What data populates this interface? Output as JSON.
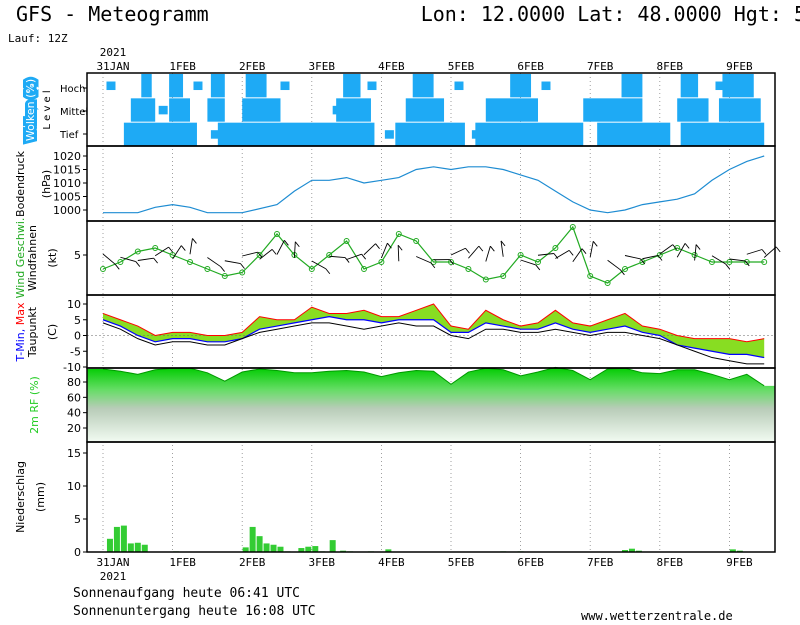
{
  "header": {
    "title_left": "GFS - Meteogramm",
    "title_right": "Lon: 12.0000 Lat: 48.0000 Hgt: 5",
    "run_label": "Lauf: 12Z"
  },
  "footer": {
    "sunrise": "Sonnenaufgang heute 06:41 UTC",
    "sunset": "Sonnenuntergang heute 16:08 UTC",
    "website": "www.wetterzentrale.de"
  },
  "time_axis": {
    "year": "2021",
    "day_labels": [
      "31JAN",
      "1FEB",
      "2FEB",
      "3FEB",
      "4FEB",
      "5FEB",
      "6FEB",
      "7FEB",
      "8FEB",
      "9FEB"
    ]
  },
  "colors": {
    "cloud": "#1eaaf5",
    "pressure": "#1e8cd2",
    "wind": "#22aa22",
    "precip": "#33cc33",
    "tmin": "#0000ff",
    "tmax": "#ff0000",
    "dewpoint": "#000000",
    "rh": "#22cc22",
    "fill_green": "#88dd22"
  },
  "chart_data": [
    {
      "type": "heatmap",
      "panel": "clouds",
      "ylabel_parts": [
        "Wolken",
        "(%)"
      ],
      "ylabel_side": "L e v e l",
      "levels": [
        "Hoch",
        "Mittel",
        "Tief"
      ],
      "x_unit": "days since 31JAN 00Z",
      "rows": [
        {
          "name": "Hoch",
          "cover": [
            [
              0.55,
              0.7
            ],
            [
              0.95,
              1.15
            ],
            [
              1.55,
              1.75
            ],
            [
              2.05,
              2.35
            ],
            [
              3.45,
              3.7
            ],
            [
              4.45,
              4.75
            ],
            [
              5.85,
              6.15
            ],
            [
              7.45,
              7.75
            ],
            [
              8.3,
              8.55
            ],
            [
              8.9,
              9.35
            ]
          ]
        },
        {
          "name": "Mittel",
          "cover": [
            [
              0.4,
              0.75
            ],
            [
              0.95,
              1.25
            ],
            [
              1.5,
              1.75
            ],
            [
              2.0,
              2.55
            ],
            [
              3.35,
              3.85
            ],
            [
              4.35,
              4.9
            ],
            [
              5.5,
              6.25
            ],
            [
              6.9,
              7.75
            ],
            [
              8.25,
              8.7
            ],
            [
              8.85,
              9.45
            ]
          ]
        },
        {
          "name": "Tief",
          "cover": [
            [
              0.3,
              1.35
            ],
            [
              1.65,
              3.9
            ],
            [
              4.2,
              5.2
            ],
            [
              5.35,
              6.9
            ],
            [
              7.1,
              8.15
            ],
            [
              8.3,
              9.5
            ]
          ]
        }
      ]
    },
    {
      "type": "line",
      "panel": "pressure",
      "ylabel": "Bodendruck",
      "unit": "(hPa)",
      "yticks": [
        1000,
        1005,
        1010,
        1015,
        1020
      ],
      "ylim": [
        997,
        1022
      ],
      "x": [
        0,
        0.5,
        0.75,
        1.0,
        1.25,
        1.5,
        1.75,
        2.0,
        2.5,
        2.75,
        3.0,
        3.25,
        3.5,
        3.75,
        4.0,
        4.25,
        4.5,
        4.75,
        5.0,
        5.25,
        5.5,
        5.75,
        6.0,
        6.25,
        6.5,
        6.75,
        7.0,
        7.25,
        7.5,
        7.75,
        8.0,
        8.25,
        8.5,
        8.75,
        9.0,
        9.25,
        9.5
      ],
      "values": [
        999,
        999,
        1001,
        1002,
        1001,
        999,
        999,
        999,
        1002,
        1007,
        1011,
        1011,
        1012,
        1010,
        1011,
        1012,
        1015,
        1016,
        1015,
        1016,
        1016,
        1015,
        1013,
        1011,
        1007,
        1003,
        1000,
        999,
        1000,
        1002,
        1003,
        1004,
        1006,
        1011,
        1015,
        1018,
        1020
      ]
    },
    {
      "type": "line",
      "panel": "wind",
      "ylabel_parts": [
        "Wind Geschwi.",
        "Windfahnen"
      ],
      "unit": "(kt)",
      "yticks": [
        5
      ],
      "ylim": [
        0,
        10
      ],
      "x": [
        0,
        0.25,
        0.5,
        0.75,
        1.0,
        1.25,
        1.5,
        1.75,
        2.0,
        2.25,
        2.5,
        2.75,
        3.0,
        3.25,
        3.5,
        3.75,
        4.0,
        4.25,
        4.5,
        4.75,
        5.0,
        5.25,
        5.5,
        5.75,
        6.0,
        6.25,
        6.5,
        6.75,
        7.0,
        7.25,
        7.5,
        7.75,
        8.0,
        8.25,
        8.5,
        8.75,
        9.0,
        9.25,
        9.5
      ],
      "values": [
        3,
        4,
        5.5,
        6,
        5,
        4,
        3,
        2,
        2.5,
        5,
        8,
        5,
        3,
        5,
        7,
        3,
        4,
        8,
        7,
        4,
        4,
        3,
        1.5,
        2,
        5,
        4,
        6,
        9,
        2,
        1,
        3,
        4,
        5,
        6,
        5,
        4,
        4,
        4,
        4
      ],
      "barbs": "present"
    },
    {
      "type": "area",
      "panel": "temperature",
      "ylabel_parts": [
        "T-Min,",
        "Max"
      ],
      "ylabel_second": "Taupunkt",
      "unit": "(C)",
      "yticks": [
        -10,
        -5,
        0,
        5,
        10
      ],
      "ylim": [
        -11,
        12
      ],
      "x": [
        0,
        0.25,
        0.5,
        0.75,
        1.0,
        1.25,
        1.5,
        1.75,
        2.0,
        2.25,
        2.5,
        2.75,
        3.0,
        3.25,
        3.5,
        3.75,
        4.0,
        4.25,
        4.5,
        4.75,
        5.0,
        5.25,
        5.5,
        5.75,
        6.0,
        6.25,
        6.5,
        6.75,
        7.0,
        7.25,
        7.5,
        7.75,
        8.0,
        8.25,
        8.5,
        8.75,
        9.0,
        9.25,
        9.5
      ],
      "series": [
        {
          "name": "Max",
          "values": [
            7,
            5,
            3,
            0,
            1,
            1,
            0,
            0,
            1,
            6,
            5,
            5,
            9,
            7,
            7,
            8,
            6,
            6,
            8,
            10,
            3,
            2,
            8,
            5,
            3,
            4,
            8,
            4,
            3,
            5,
            7,
            3,
            2,
            0,
            -1,
            -1,
            -1,
            -2,
            -1
          ]
        },
        {
          "name": "Min",
          "values": [
            5,
            3,
            0,
            -2,
            -1,
            -1,
            -2,
            -2,
            -1,
            2,
            3,
            4,
            5,
            6,
            5,
            5,
            4,
            5,
            5,
            5,
            1,
            1,
            4,
            3,
            2,
            2,
            4,
            2,
            1,
            2,
            3,
            1,
            0,
            -3,
            -4,
            -5,
            -6,
            -6,
            -7
          ]
        },
        {
          "name": "Taupunkt",
          "values": [
            4,
            2,
            -1,
            -3,
            -2,
            -2,
            -3,
            -3,
            -1,
            1,
            2,
            3,
            4,
            4,
            3,
            2,
            3,
            4,
            3,
            3,
            0,
            -1,
            2,
            2,
            1,
            1,
            2,
            1,
            0,
            1,
            1,
            0,
            -1,
            -3,
            -5,
            -7,
            -8,
            -9,
            -9
          ]
        }
      ]
    },
    {
      "type": "area",
      "panel": "humidity",
      "ylabel": "2m RF (%)",
      "yticks": [
        20,
        40,
        60,
        80
      ],
      "ylim": [
        0,
        100
      ],
      "x": [
        0,
        0.25,
        0.5,
        0.75,
        1.0,
        1.25,
        1.5,
        1.75,
        2.0,
        2.25,
        2.5,
        2.75,
        3.0,
        3.25,
        3.5,
        3.75,
        4.0,
        4.25,
        4.5,
        4.75,
        5.0,
        5.25,
        5.5,
        5.75,
        6.0,
        6.25,
        6.5,
        6.75,
        7.0,
        7.25,
        7.5,
        7.75,
        8.0,
        8.25,
        8.5,
        8.75,
        9.0,
        9.25,
        9.5
      ],
      "values": [
        97,
        94,
        90,
        96,
        98,
        98,
        92,
        81,
        93,
        97,
        95,
        92,
        92,
        94,
        95,
        93,
        87,
        92,
        95,
        94,
        77,
        93,
        98,
        96,
        88,
        93,
        99,
        95,
        83,
        97,
        98,
        92,
        91,
        96,
        96,
        90,
        83,
        90,
        75
      ]
    },
    {
      "type": "bar",
      "panel": "precipitation",
      "ylabel": "Niederschlag",
      "unit": "(mm)",
      "yticks": [
        0,
        5,
        10,
        15
      ],
      "ylim": [
        0,
        16
      ],
      "x": [
        0.1,
        0.2,
        0.3,
        0.4,
        0.5,
        0.6,
        1.05,
        2.05,
        2.15,
        2.25,
        2.35,
        2.45,
        2.55,
        2.65,
        2.85,
        2.95,
        3.05,
        3.15,
        3.3,
        3.45,
        3.55,
        3.85,
        4.1,
        5.75,
        6.0,
        7.5,
        7.6,
        7.7,
        9.05,
        9.15
      ],
      "values": [
        2,
        3.8,
        4,
        1.3,
        1.4,
        1.1,
        0.1,
        0.7,
        3.8,
        2.4,
        1.3,
        1.1,
        0.8,
        0.1,
        0.6,
        0.8,
        0.9,
        0.1,
        1.8,
        0.2,
        0.1,
        0.1,
        0.4,
        0.1,
        0.1,
        0.3,
        0.5,
        0.2,
        0.4,
        0.2
      ]
    }
  ]
}
